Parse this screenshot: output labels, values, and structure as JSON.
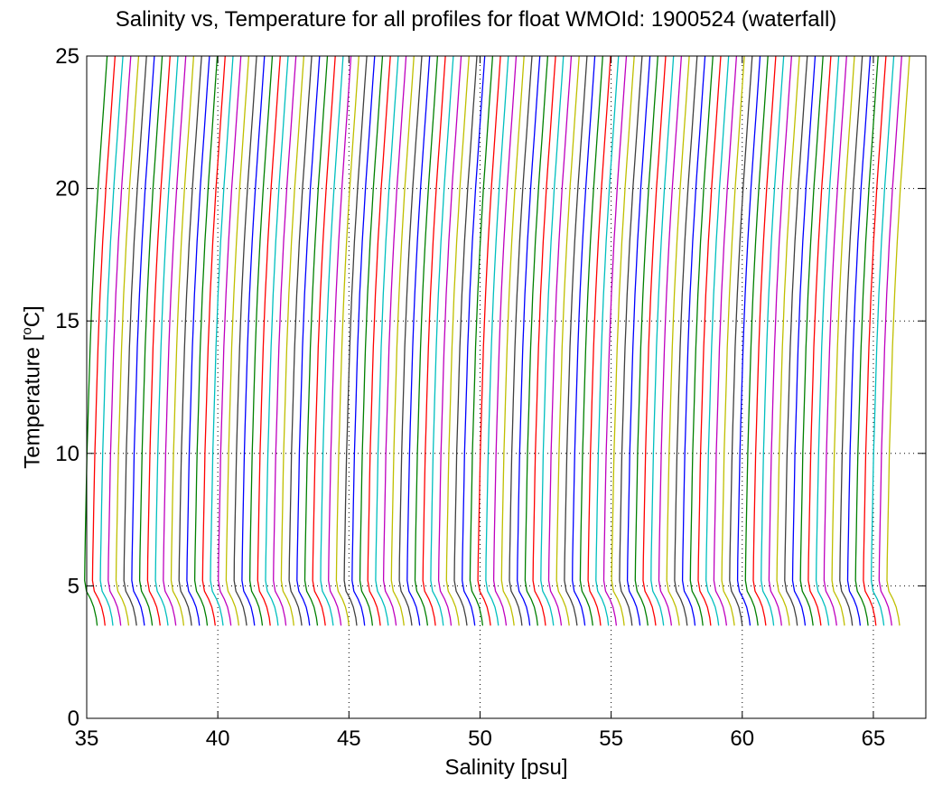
{
  "chart_data": {
    "type": "line",
    "title": "Salinity vs, Temperature for all profiles for float WMOId: 1900524 (waterfall)",
    "xlabel": "Salinity [psu]",
    "ylabel_main": "Temperature [",
    "ylabel_sup": "o",
    "ylabel_end": "C]",
    "xlim": [
      35,
      67
    ],
    "ylim": [
      0,
      25
    ],
    "xticks": [
      35,
      40,
      45,
      50,
      55,
      60,
      65
    ],
    "yticks": [
      0,
      5,
      10,
      15,
      20,
      25
    ],
    "grid": "dotted",
    "series_colors": [
      "#008000",
      "#ff0000",
      "#00bfbf",
      "#bf00bf",
      "#bfbf00",
      "#404040",
      "#0000ff"
    ],
    "profile_count": 103,
    "profile_offset_step": 0.3,
    "first_profile_offset": 0,
    "base_profile": {
      "temperature": [
        3.5,
        3.8,
        4.2,
        4.5,
        4.8,
        5.2,
        6,
        7,
        8,
        9,
        10,
        11,
        12,
        13,
        14,
        15,
        16,
        17,
        18,
        19,
        20,
        21,
        22,
        23,
        24,
        25
      ],
      "salinity": [
        35.4,
        35.36,
        35.27,
        35.15,
        34.99,
        34.92,
        34.93,
        34.95,
        34.97,
        34.99,
        35.01,
        35.04,
        35.07,
        35.1,
        35.13,
        35.17,
        35.21,
        35.26,
        35.31,
        35.37,
        35.43,
        35.5,
        35.57,
        35.64,
        35.71,
        35.78
      ]
    }
  }
}
